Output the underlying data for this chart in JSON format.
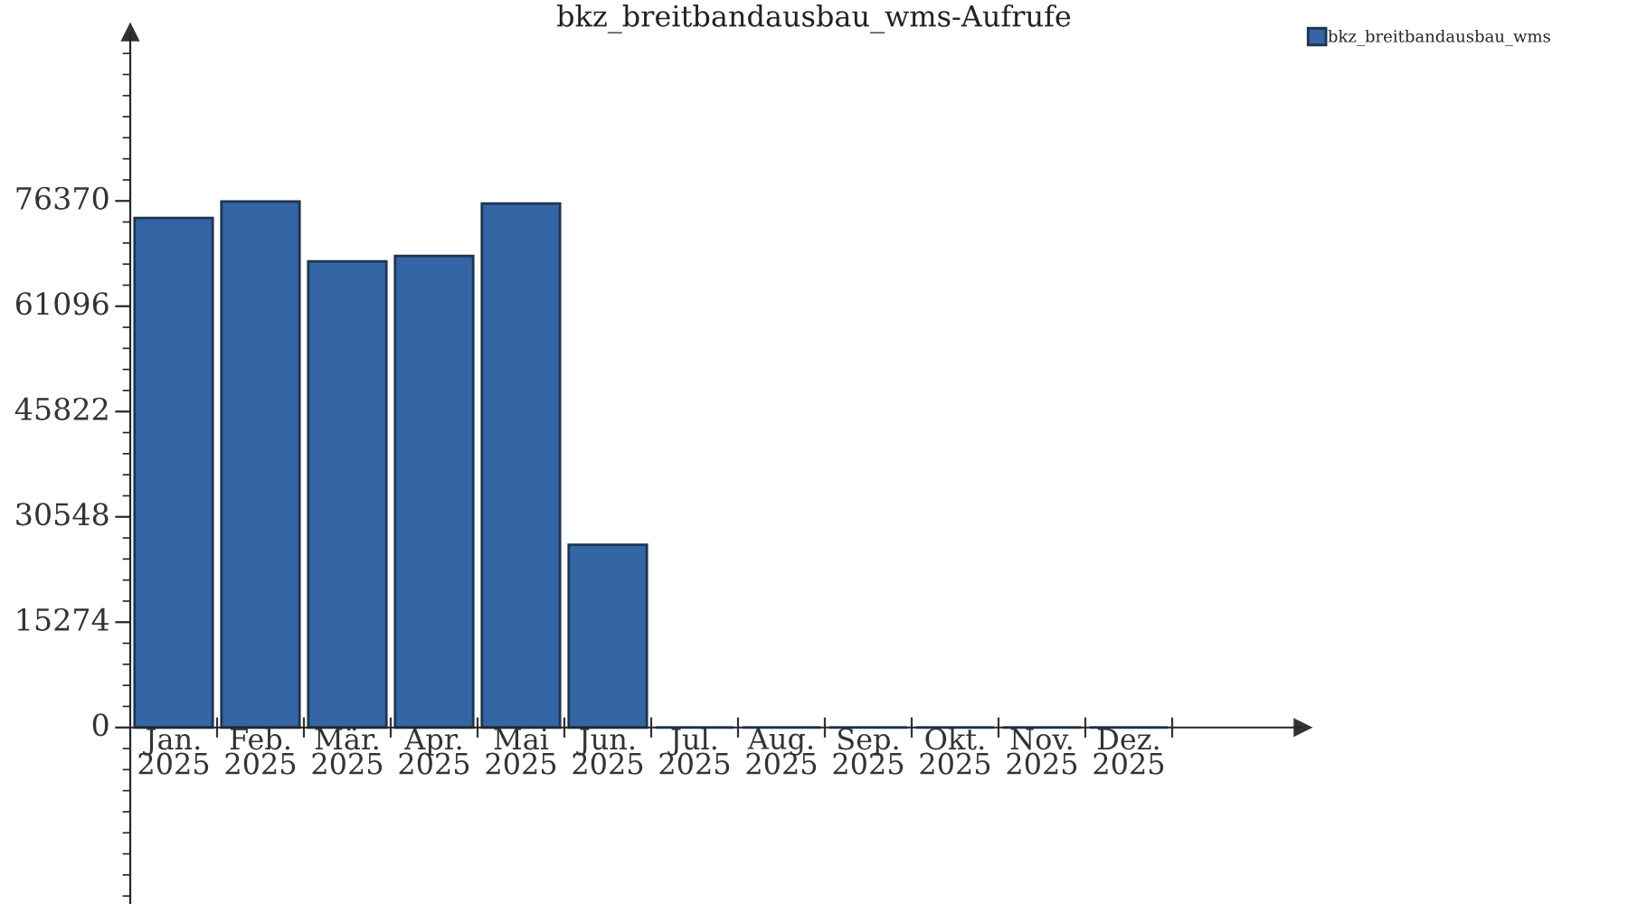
{
  "chart_data": {
    "type": "bar",
    "title": "bkz_breitbandausbau_wms-Aufrufe",
    "categories": [
      "Jan.\n2025",
      "Feb.\n2025",
      "Mär.\n2025",
      "Apr.\n2025",
      "Mai\n2025",
      "Jun.\n2025",
      "Jul.\n2025",
      "Aug.\n2025",
      "Sep.\n2025",
      "Okt.\n2025",
      "Nov.\n2025",
      "Dez.\n2025"
    ],
    "series": [
      {
        "name": "bkz_breitbandausbau_wms",
        "color": "#3465a4",
        "values": [
          73900,
          76300,
          67600,
          68400,
          76000,
          26500,
          0,
          0,
          0,
          0,
          0,
          0
        ]
      }
    ],
    "ylim": [
      -25600,
      100790
    ],
    "yticks": [
      0,
      15274,
      30548,
      45822,
      61096,
      76370
    ],
    "grid": false,
    "legend": "top right"
  }
}
